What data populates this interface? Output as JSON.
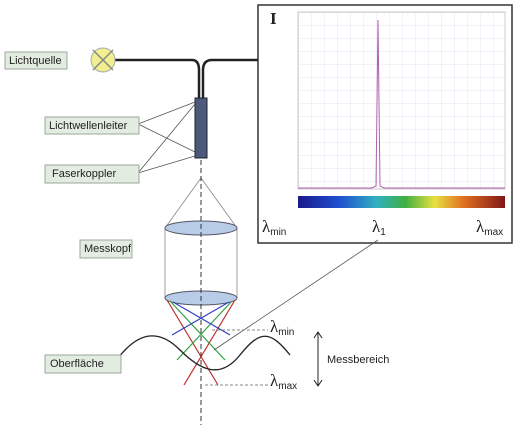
{
  "labels": {
    "light_source": "Lichtquelle",
    "fiber": "Lichtwellenleiter",
    "coupler": "Faserkoppler",
    "head": "Messkopf",
    "surface": "Oberfläche",
    "range": "Messbereich"
  },
  "spectrum": {
    "axis": "I",
    "lambda_min": {
      "symbol": "λ",
      "sub": "min"
    },
    "lambda_1": {
      "symbol": "λ",
      "sub": "1"
    },
    "lambda_max": {
      "symbol": "λ",
      "sub": "max"
    }
  },
  "range_marks": {
    "lambda_min": {
      "symbol": "λ",
      "sub": "min"
    },
    "lambda_max": {
      "symbol": "λ",
      "sub": "max"
    }
  }
}
